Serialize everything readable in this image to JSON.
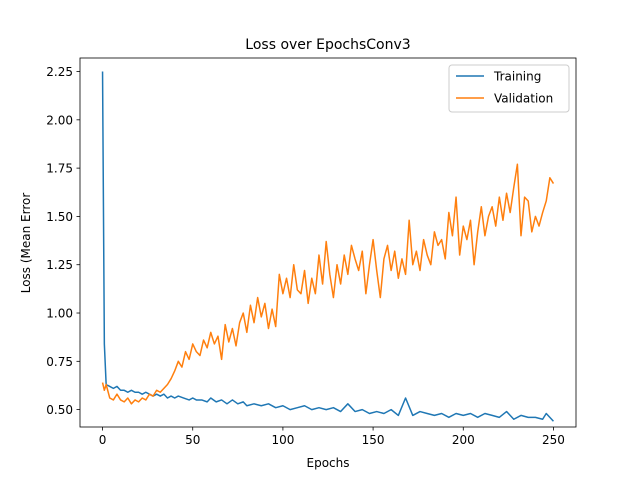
{
  "chart_data": {
    "type": "line",
    "title": "Loss over EpochsConv3",
    "xlabel": "Epochs",
    "ylabel": "Loss (Mean Error",
    "xlim": [
      -12.5,
      262.5
    ],
    "ylim": [
      0.41,
      2.32
    ],
    "xticks": [
      0,
      50,
      100,
      150,
      200,
      250
    ],
    "yticks": [
      0.5,
      0.75,
      1.0,
      1.25,
      1.5,
      1.75,
      2.0,
      2.25
    ],
    "ytick_labels": [
      "0.50",
      "0.75",
      "1.00",
      "1.25",
      "1.50",
      "1.75",
      "2.00",
      "2.25"
    ],
    "legend": "top-right",
    "grid": false,
    "series": [
      {
        "name": "Training",
        "color": "#1f77b4",
        "points": [
          [
            0,
            2.25
          ],
          [
            1,
            0.84
          ],
          [
            2,
            0.63
          ],
          [
            4,
            0.62
          ],
          [
            6,
            0.61
          ],
          [
            8,
            0.62
          ],
          [
            10,
            0.6
          ],
          [
            12,
            0.6
          ],
          [
            14,
            0.59
          ],
          [
            16,
            0.6
          ],
          [
            18,
            0.59
          ],
          [
            20,
            0.59
          ],
          [
            22,
            0.58
          ],
          [
            24,
            0.59
          ],
          [
            26,
            0.58
          ],
          [
            28,
            0.57
          ],
          [
            30,
            0.58
          ],
          [
            32,
            0.57
          ],
          [
            34,
            0.58
          ],
          [
            36,
            0.56
          ],
          [
            38,
            0.57
          ],
          [
            40,
            0.56
          ],
          [
            42,
            0.57
          ],
          [
            45,
            0.56
          ],
          [
            48,
            0.55
          ],
          [
            50,
            0.56
          ],
          [
            52,
            0.55
          ],
          [
            55,
            0.55
          ],
          [
            58,
            0.54
          ],
          [
            60,
            0.56
          ],
          [
            63,
            0.54
          ],
          [
            66,
            0.55
          ],
          [
            69,
            0.53
          ],
          [
            72,
            0.55
          ],
          [
            75,
            0.53
          ],
          [
            78,
            0.54
          ],
          [
            80,
            0.52
          ],
          [
            84,
            0.53
          ],
          [
            88,
            0.52
          ],
          [
            92,
            0.53
          ],
          [
            96,
            0.51
          ],
          [
            100,
            0.52
          ],
          [
            104,
            0.5
          ],
          [
            108,
            0.51
          ],
          [
            112,
            0.52
          ],
          [
            116,
            0.5
          ],
          [
            120,
            0.51
          ],
          [
            124,
            0.5
          ],
          [
            128,
            0.51
          ],
          [
            132,
            0.49
          ],
          [
            136,
            0.53
          ],
          [
            140,
            0.49
          ],
          [
            144,
            0.5
          ],
          [
            148,
            0.48
          ],
          [
            152,
            0.49
          ],
          [
            156,
            0.48
          ],
          [
            160,
            0.5
          ],
          [
            164,
            0.47
          ],
          [
            168,
            0.56
          ],
          [
            172,
            0.47
          ],
          [
            176,
            0.49
          ],
          [
            180,
            0.48
          ],
          [
            184,
            0.47
          ],
          [
            188,
            0.48
          ],
          [
            192,
            0.46
          ],
          [
            196,
            0.48
          ],
          [
            200,
            0.47
          ],
          [
            204,
            0.48
          ],
          [
            208,
            0.46
          ],
          [
            212,
            0.48
          ],
          [
            216,
            0.47
          ],
          [
            220,
            0.46
          ],
          [
            224,
            0.49
          ],
          [
            228,
            0.45
          ],
          [
            232,
            0.47
          ],
          [
            236,
            0.46
          ],
          [
            240,
            0.46
          ],
          [
            244,
            0.45
          ],
          [
            246,
            0.48
          ],
          [
            248,
            0.46
          ],
          [
            250,
            0.44
          ]
        ]
      },
      {
        "name": "Validation",
        "color": "#ff7f0e",
        "points": [
          [
            0,
            0.64
          ],
          [
            1,
            0.6
          ],
          [
            2,
            0.63
          ],
          [
            4,
            0.56
          ],
          [
            6,
            0.55
          ],
          [
            8,
            0.58
          ],
          [
            10,
            0.55
          ],
          [
            12,
            0.54
          ],
          [
            14,
            0.56
          ],
          [
            16,
            0.53
          ],
          [
            18,
            0.55
          ],
          [
            20,
            0.54
          ],
          [
            22,
            0.56
          ],
          [
            24,
            0.55
          ],
          [
            26,
            0.58
          ],
          [
            28,
            0.57
          ],
          [
            30,
            0.6
          ],
          [
            32,
            0.59
          ],
          [
            34,
            0.61
          ],
          [
            36,
            0.63
          ],
          [
            38,
            0.66
          ],
          [
            40,
            0.7
          ],
          [
            42,
            0.75
          ],
          [
            44,
            0.72
          ],
          [
            46,
            0.8
          ],
          [
            48,
            0.76
          ],
          [
            50,
            0.84
          ],
          [
            52,
            0.8
          ],
          [
            54,
            0.78
          ],
          [
            56,
            0.86
          ],
          [
            58,
            0.82
          ],
          [
            60,
            0.9
          ],
          [
            62,
            0.84
          ],
          [
            64,
            0.88
          ],
          [
            66,
            0.76
          ],
          [
            68,
            0.94
          ],
          [
            70,
            0.85
          ],
          [
            72,
            0.92
          ],
          [
            74,
            0.83
          ],
          [
            76,
            0.95
          ],
          [
            78,
            1.0
          ],
          [
            80,
            0.9
          ],
          [
            82,
            1.04
          ],
          [
            84,
            0.95
          ],
          [
            86,
            1.08
          ],
          [
            88,
            0.98
          ],
          [
            90,
            1.05
          ],
          [
            92,
            0.92
          ],
          [
            94,
            1.02
          ],
          [
            96,
            0.93
          ],
          [
            98,
            1.2
          ],
          [
            100,
            1.1
          ],
          [
            102,
            1.18
          ],
          [
            104,
            1.08
          ],
          [
            106,
            1.25
          ],
          [
            108,
            1.12
          ],
          [
            110,
            1.1
          ],
          [
            112,
            1.22
          ],
          [
            114,
            1.05
          ],
          [
            116,
            1.18
          ],
          [
            118,
            1.1
          ],
          [
            120,
            1.3
          ],
          [
            122,
            1.15
          ],
          [
            124,
            1.37
          ],
          [
            126,
            1.2
          ],
          [
            128,
            1.08
          ],
          [
            130,
            1.25
          ],
          [
            132,
            1.15
          ],
          [
            134,
            1.3
          ],
          [
            136,
            1.2
          ],
          [
            138,
            1.35
          ],
          [
            140,
            1.28
          ],
          [
            142,
            1.22
          ],
          [
            144,
            1.32
          ],
          [
            146,
            1.1
          ],
          [
            148,
            1.25
          ],
          [
            150,
            1.38
          ],
          [
            152,
            1.22
          ],
          [
            154,
            1.08
          ],
          [
            156,
            1.28
          ],
          [
            158,
            1.35
          ],
          [
            160,
            1.22
          ],
          [
            162,
            1.32
          ],
          [
            164,
            1.18
          ],
          [
            166,
            1.28
          ],
          [
            168,
            1.2
          ],
          [
            170,
            1.48
          ],
          [
            172,
            1.25
          ],
          [
            174,
            1.32
          ],
          [
            176,
            1.22
          ],
          [
            178,
            1.38
          ],
          [
            180,
            1.3
          ],
          [
            182,
            1.25
          ],
          [
            184,
            1.42
          ],
          [
            186,
            1.35
          ],
          [
            188,
            1.38
          ],
          [
            190,
            1.28
          ],
          [
            192,
            1.52
          ],
          [
            194,
            1.4
          ],
          [
            196,
            1.6
          ],
          [
            198,
            1.3
          ],
          [
            200,
            1.45
          ],
          [
            202,
            1.38
          ],
          [
            204,
            1.48
          ],
          [
            206,
            1.25
          ],
          [
            208,
            1.42
          ],
          [
            210,
            1.55
          ],
          [
            212,
            1.4
          ],
          [
            214,
            1.5
          ],
          [
            216,
            1.55
          ],
          [
            218,
            1.45
          ],
          [
            220,
            1.6
          ],
          [
            222,
            1.48
          ],
          [
            224,
            1.62
          ],
          [
            226,
            1.52
          ],
          [
            228,
            1.65
          ],
          [
            230,
            1.77
          ],
          [
            232,
            1.4
          ],
          [
            234,
            1.6
          ],
          [
            236,
            1.58
          ],
          [
            238,
            1.42
          ],
          [
            240,
            1.5
          ],
          [
            242,
            1.45
          ],
          [
            244,
            1.52
          ],
          [
            246,
            1.58
          ],
          [
            248,
            1.7
          ],
          [
            250,
            1.67
          ]
        ]
      }
    ]
  }
}
